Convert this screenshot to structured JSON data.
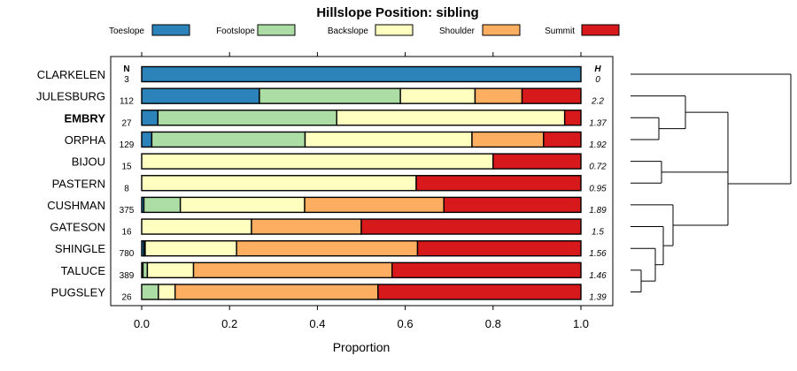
{
  "chart_data": {
    "type": "bar",
    "orientation": "horizontal-stacked",
    "title": "Hillslope Position: sibling",
    "xlabel": "Proportion",
    "ylabel": "",
    "xlim": [
      0,
      1
    ],
    "x_ticks": [
      "0.0",
      "0.2",
      "0.4",
      "0.6",
      "0.8",
      "1.0"
    ],
    "n_header": "N",
    "h_header": "H",
    "legend_position": "top",
    "series": [
      {
        "name": "Toeslope",
        "color": "#2b83ba"
      },
      {
        "name": "Footslope",
        "color": "#abdda4"
      },
      {
        "name": "Backslope",
        "color": "#ffffbf"
      },
      {
        "name": "Shoulder",
        "color": "#fdae61"
      },
      {
        "name": "Summit",
        "color": "#d7191c"
      }
    ],
    "rows": [
      {
        "name": "CLARKELEN",
        "n": "3",
        "h": "0",
        "bold": false,
        "values": [
          1.0,
          0,
          0,
          0,
          0
        ]
      },
      {
        "name": "JULESBURG",
        "n": "112",
        "h": "2.2",
        "bold": false,
        "values": [
          0.268,
          0.321,
          0.17,
          0.107,
          0.134
        ]
      },
      {
        "name": "EMBRY",
        "n": "27",
        "h": "1.37",
        "bold": true,
        "values": [
          0.037,
          0.407,
          0.519,
          0,
          0.037
        ]
      },
      {
        "name": "ORPHA",
        "n": "129",
        "h": "1.92",
        "bold": false,
        "values": [
          0.023,
          0.349,
          0.38,
          0.163,
          0.085
        ]
      },
      {
        "name": "BIJOU",
        "n": "15",
        "h": "0.72",
        "bold": false,
        "values": [
          0,
          0,
          0.8,
          0,
          0.2
        ]
      },
      {
        "name": "PASTERN",
        "n": "8",
        "h": "0.95",
        "bold": false,
        "values": [
          0,
          0,
          0.625,
          0,
          0.375
        ]
      },
      {
        "name": "CUSHMAN",
        "n": "375",
        "h": "1.89",
        "bold": false,
        "values": [
          0.005,
          0.083,
          0.283,
          0.317,
          0.312
        ]
      },
      {
        "name": "GATESON",
        "n": "16",
        "h": "1.5",
        "bold": false,
        "values": [
          0,
          0,
          0.25,
          0.25,
          0.5
        ]
      },
      {
        "name": "SHINGLE",
        "n": "780",
        "h": "1.56",
        "bold": false,
        "values": [
          0.005,
          0.003,
          0.208,
          0.412,
          0.372
        ]
      },
      {
        "name": "TALUCE",
        "n": "389",
        "h": "1.46",
        "bold": false,
        "values": [
          0.003,
          0.01,
          0.105,
          0.452,
          0.43
        ]
      },
      {
        "name": "PUGSLEY",
        "n": "26",
        "h": "1.39",
        "bold": false,
        "values": [
          0,
          0.038,
          0.038,
          0.462,
          0.462
        ]
      }
    ]
  }
}
